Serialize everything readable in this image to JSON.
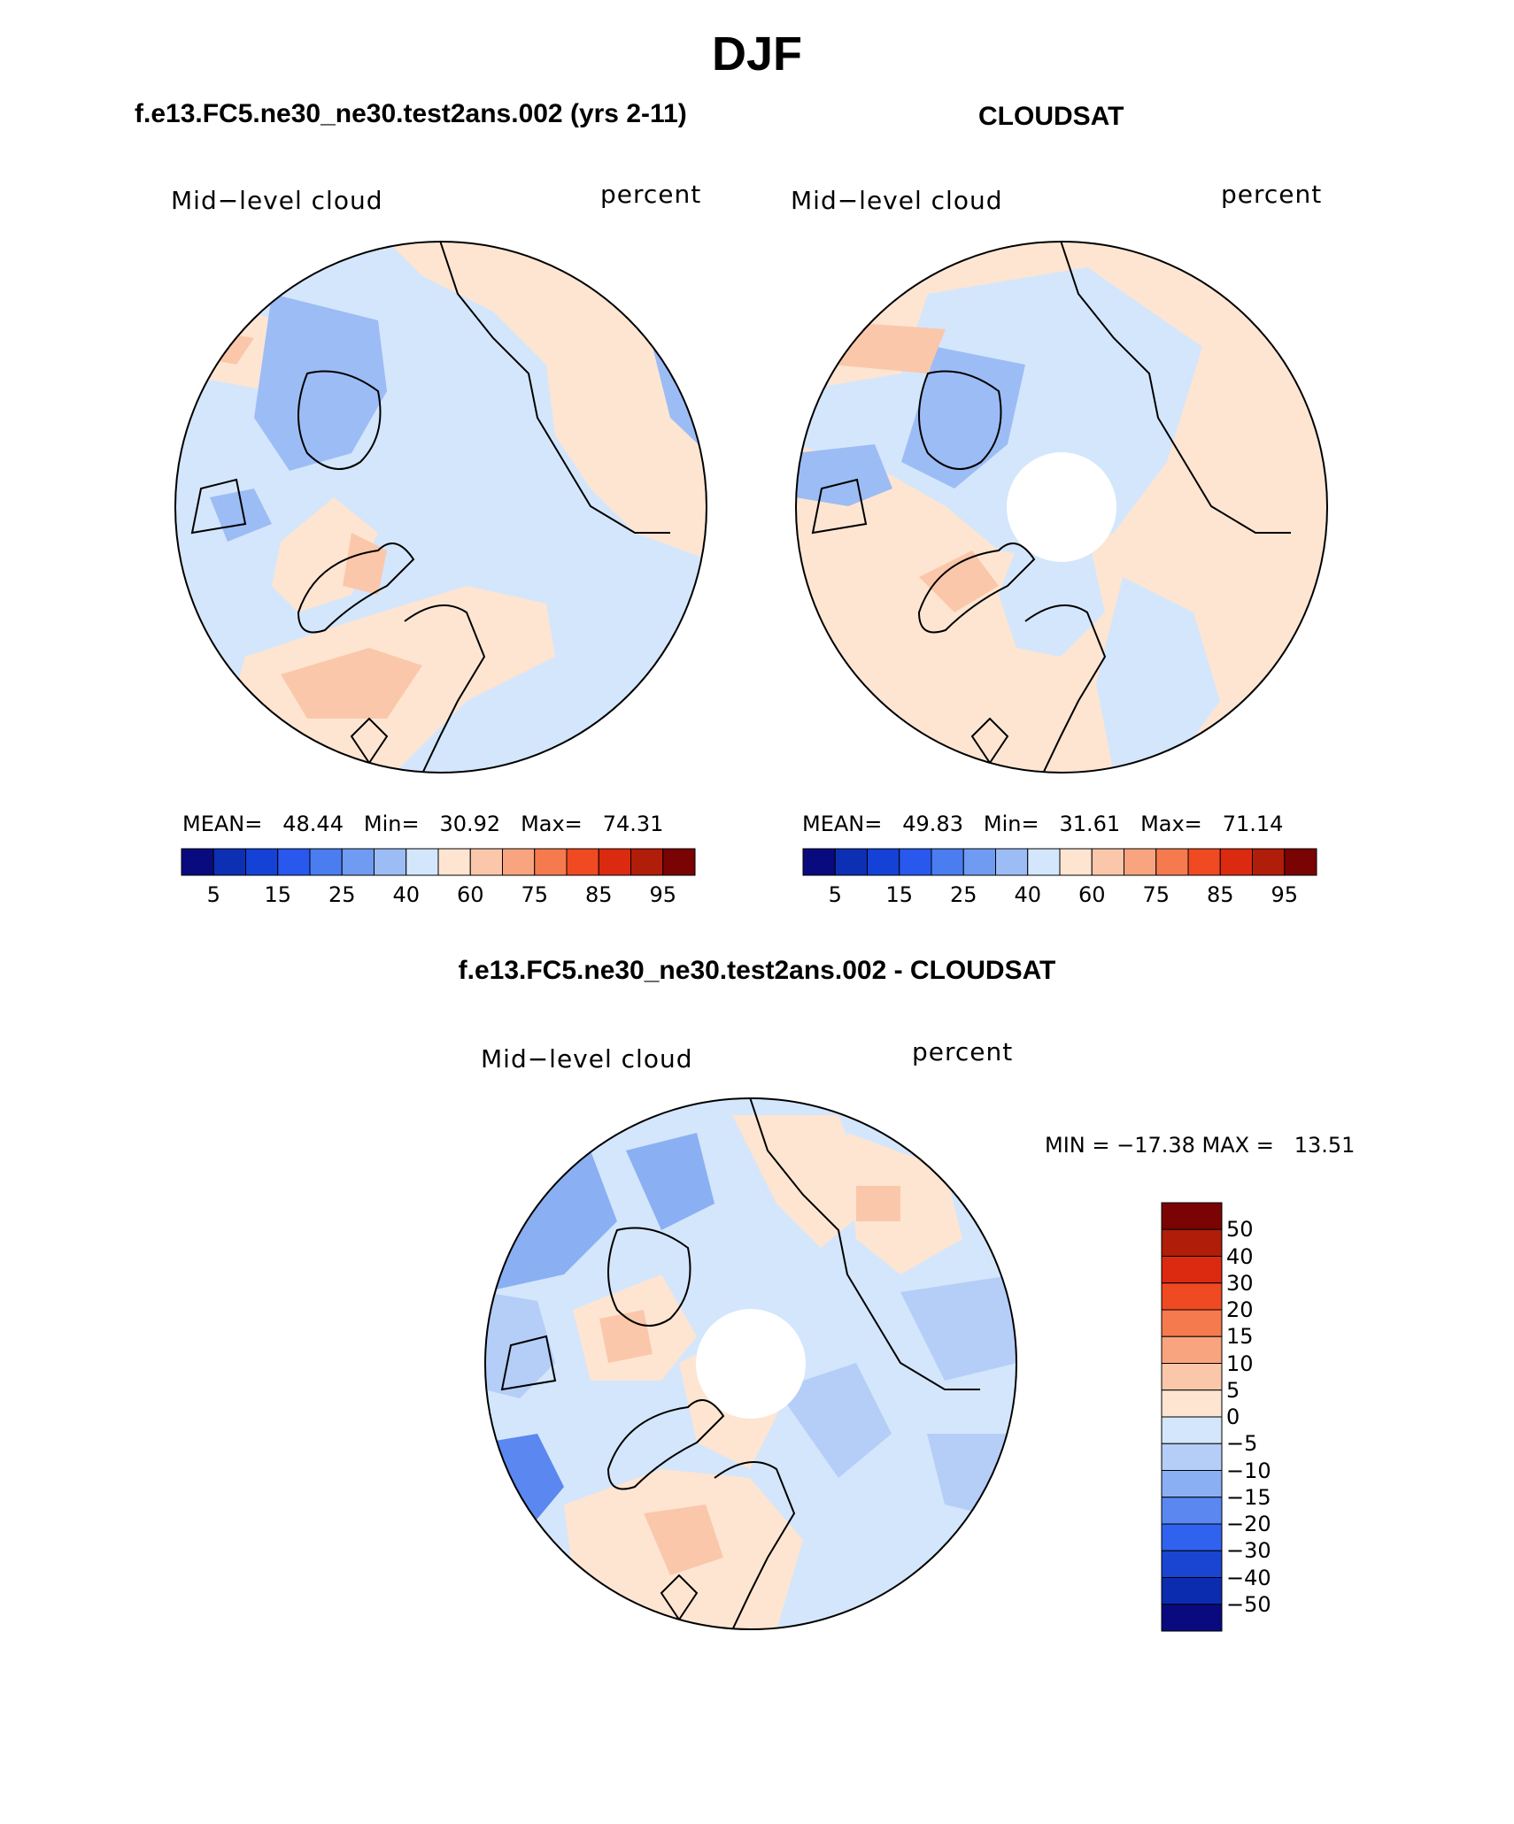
{
  "title": "DJF",
  "panels": [
    {
      "id": "model",
      "title": "f.e13.FC5.ne30_ne30.test2ans.002 (yrs 2-11)",
      "variable": "Mid−level cloud",
      "units": "percent",
      "stats": {
        "mean_label": "MEAN=",
        "mean": "48.44",
        "min_label": "Min=",
        "min": "30.92",
        "max_label": "Max=",
        "max": "74.31"
      },
      "colorbar": {
        "colors": [
          "#0a0a7f",
          "#0c2fb4",
          "#1441d6",
          "#2958ee",
          "#4a7df0",
          "#6f9bf2",
          "#9cbcf5",
          "#d4e6fb",
          "#fde5d2",
          "#fbc7aa",
          "#f8a47f",
          "#f57a4e",
          "#ef4a22",
          "#dc2a10",
          "#b01d08",
          "#7a0303"
        ],
        "tick_labels": [
          "5",
          "15",
          "25",
          "40",
          "60",
          "75",
          "85",
          "95"
        ]
      }
    },
    {
      "id": "obs",
      "title": "CLOUDSAT",
      "variable": "Mid−level cloud",
      "units": "percent",
      "stats": {
        "mean_label": "MEAN=",
        "mean": "49.83",
        "min_label": "Min=",
        "min": "31.61",
        "max_label": "Max=",
        "max": "71.14"
      },
      "colorbar": {
        "colors": [
          "#0a0a7f",
          "#0c2fb4",
          "#1441d6",
          "#2958ee",
          "#4a7df0",
          "#6f9bf2",
          "#9cbcf5",
          "#d4e6fb",
          "#fde5d2",
          "#fbc7aa",
          "#f8a47f",
          "#f57a4e",
          "#ef4a22",
          "#dc2a10",
          "#b01d08",
          "#7a0303"
        ],
        "tick_labels": [
          "5",
          "15",
          "25",
          "40",
          "60",
          "75",
          "85",
          "95"
        ]
      }
    },
    {
      "id": "diff",
      "title": "f.e13.FC5.ne30_ne30.test2ans.002 - CLOUDSAT",
      "variable": "Mid−level cloud",
      "units": "percent",
      "minmax": "MIN = −17.38 MAX =   13.51",
      "colorbar": {
        "colors_top_to_bottom": [
          "#7a0303",
          "#b01d08",
          "#dc2a10",
          "#ef4a22",
          "#f57a4e",
          "#f8a47f",
          "#fbc7aa",
          "#fde5d2",
          "#d4e6fb",
          "#b5cef8",
          "#8ab0f3",
          "#5a88f0",
          "#2f62ee",
          "#1a45d2",
          "#0c2cb0",
          "#0a0a7f"
        ],
        "tick_labels_top_to_bottom": [
          "50",
          "40",
          "30",
          "20",
          "15",
          "10",
          "5",
          "0",
          "−5",
          "−10",
          "−15",
          "−20",
          "−30",
          "−40",
          "−50"
        ]
      }
    }
  ]
}
